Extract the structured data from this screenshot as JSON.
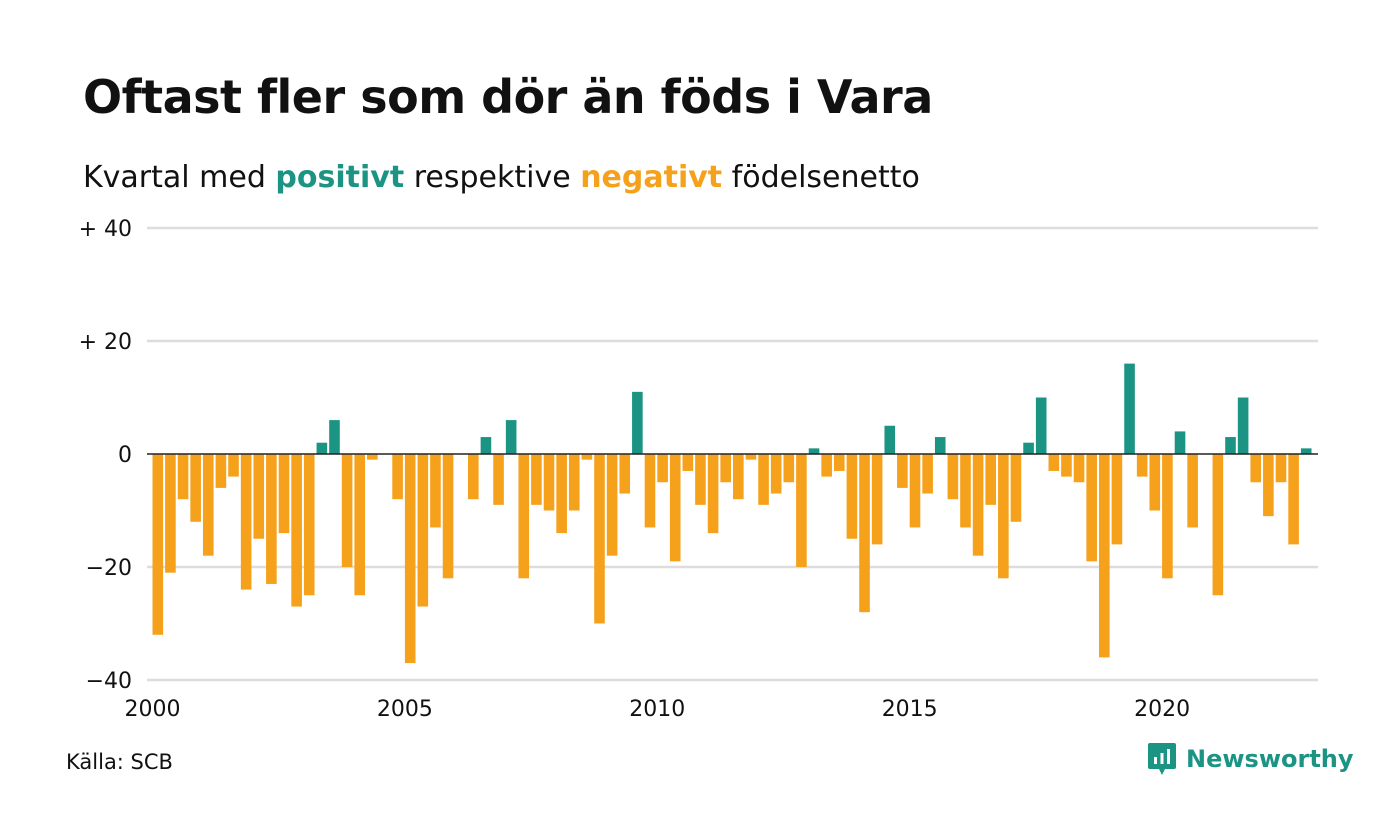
{
  "title": "Oftast fler som dör än föds i Vara",
  "subtitle": {
    "part1": "Kvartal med ",
    "positive_word": "positivt",
    "part2": " respektive ",
    "negative_word": "negativt",
    "part3": " födelsenetto"
  },
  "source": "Källa: SCB",
  "brand": {
    "name": "Newsworthy",
    "icon": "newsworthy-logo-icon"
  },
  "colors": {
    "positive": "#1b9484",
    "negative": "#f5a11b",
    "grid": "#dddddd",
    "zero": "#222222"
  },
  "chart_data": {
    "type": "bar",
    "title": "Oftast fler som dör än föds i Vara",
    "subtitle": "Kvartal med positivt respektive negativt födelsenetto",
    "x_start": "2000 Q1",
    "x_ticks": [
      {
        "label": "2000",
        "index": 0
      },
      {
        "label": "2005",
        "index": 20
      },
      {
        "label": "2010",
        "index": 40
      },
      {
        "label": "2015",
        "index": 60
      },
      {
        "label": "2020",
        "index": 80
      }
    ],
    "y_ticks": [
      {
        "value": 40,
        "label": "+ 40"
      },
      {
        "value": 20,
        "label": "+ 20"
      },
      {
        "value": 0,
        "label": "0"
      },
      {
        "value": -20,
        "label": "−20"
      },
      {
        "value": -40,
        "label": "−40"
      }
    ],
    "ylim": [
      -40,
      40
    ],
    "grid": true,
    "legend": "none (colors explained in subtitle)",
    "values": [
      -32,
      -21,
      -8,
      -12,
      -18,
      -6,
      -4,
      -24,
      -15,
      -23,
      -14,
      -27,
      -25,
      2,
      6,
      -20,
      -25,
      -1,
      0,
      -8,
      -37,
      -27,
      -13,
      -22,
      0,
      -8,
      3,
      -9,
      6,
      -22,
      -9,
      -10,
      -14,
      -10,
      -1,
      -30,
      -18,
      -7,
      11,
      -13,
      -5,
      -19,
      -3,
      -9,
      -14,
      -5,
      -8,
      -1,
      -9,
      -7,
      -5,
      -20,
      1,
      -4,
      -3,
      -15,
      -28,
      -16,
      5,
      -6,
      -13,
      -7,
      3,
      -8,
      -13,
      -18,
      -9,
      -22,
      -12,
      2,
      10,
      -3,
      -4,
      -5,
      -19,
      -36,
      -16,
      16,
      -4,
      -10,
      -22,
      4,
      -13,
      0,
      -25,
      3,
      10,
      -5,
      -11,
      -5,
      -16,
      1
    ]
  }
}
